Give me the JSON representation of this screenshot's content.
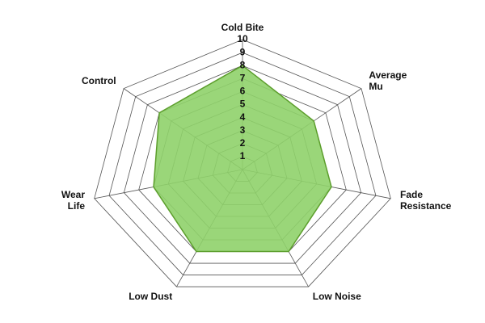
{
  "chart_data": {
    "type": "radar",
    "categories": [
      "Cold Bite",
      "Average\nMu",
      "Fade\nResistance",
      "Low Noise",
      "Low Dust",
      "Wear\nLife",
      "Control"
    ],
    "values": [
      8,
      6,
      6,
      7,
      7,
      6,
      7
    ],
    "ylim": [
      0,
      10
    ],
    "yticks": [
      1,
      2,
      3,
      4,
      5,
      6,
      7,
      8,
      9,
      10
    ],
    "color": "#8fd16a",
    "line_color": "#5c9e2c",
    "grid": true
  }
}
